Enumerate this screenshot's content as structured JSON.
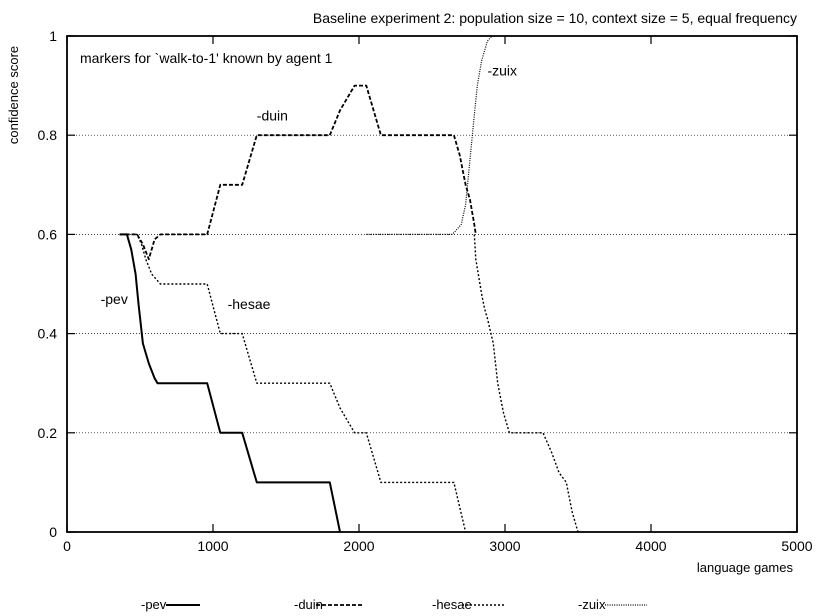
{
  "chart_data": {
    "type": "line",
    "title": "Baseline experiment 2: population size = 10, context size = 5, equal frequency",
    "xlabel": "language games",
    "ylabel": "confidence score",
    "xlim": [
      0,
      5000
    ],
    "ylim": [
      0,
      1
    ],
    "xticks": [
      "0",
      "1000",
      "2000",
      "3000",
      "4000",
      "5000"
    ],
    "yticks": [
      "0",
      "0.2",
      "0.4",
      "0.6",
      "0.8",
      "1"
    ],
    "grid": "horizontal dotted",
    "legend_position": "bottom",
    "annotation": "markers for `walk-to-1' known by agent 1",
    "series": [
      {
        "name": "-pev",
        "style": "solid",
        "label_at": [
          230,
          0.46
        ],
        "x": [
          360,
          410,
          440,
          470,
          490,
          520,
          560,
          600,
          620,
          960,
          1050,
          1200,
          1300,
          1800,
          1870
        ],
        "y": [
          0.6,
          0.6,
          0.57,
          0.52,
          0.46,
          0.38,
          0.34,
          0.31,
          0.3,
          0.3,
          0.2,
          0.2,
          0.1,
          0.1,
          0.0
        ]
      },
      {
        "name": "-duin",
        "style": "dashed",
        "label_at": [
          1300,
          0.83
        ],
        "x": [
          360,
          480,
          520,
          560,
          600,
          640,
          960,
          1050,
          1200,
          1300,
          1800,
          1870,
          1970,
          2050,
          2150,
          2650,
          2690,
          2730,
          2760,
          2790,
          2800
        ],
        "y": [
          0.6,
          0.6,
          0.58,
          0.55,
          0.59,
          0.6,
          0.6,
          0.7,
          0.7,
          0.8,
          0.8,
          0.85,
          0.9,
          0.9,
          0.8,
          0.8,
          0.76,
          0.7,
          0.67,
          0.62,
          0.6
        ]
      },
      {
        "name": "-hesae",
        "style": "dotted",
        "label_at": [
          1100,
          0.45
        ],
        "x": [
          360,
          480,
          510,
          540,
          580,
          640,
          960,
          1050,
          1200,
          1300,
          1800,
          1870,
          1970,
          2050,
          2150,
          2650,
          2690,
          2730,
          2790,
          2800,
          2840,
          2860,
          2880,
          2920,
          2950,
          2990,
          3030,
          3260,
          3320,
          3370,
          3420,
          3460,
          3500
        ],
        "y": [
          0.6,
          0.6,
          0.58,
          0.55,
          0.52,
          0.5,
          0.5,
          0.4,
          0.4,
          0.3,
          0.3,
          0.25,
          0.2,
          0.2,
          0.1,
          0.1,
          0.05,
          0.0,
          0.6,
          0.55,
          0.48,
          0.45,
          0.43,
          0.38,
          0.3,
          0.24,
          0.2,
          0.2,
          0.16,
          0.12,
          0.1,
          0.04,
          0.0
        ]
      },
      {
        "name": "-zuix",
        "style": "densedot",
        "label_at": [
          2880,
          0.92
        ],
        "x": [
          2050,
          2640,
          2700,
          2730,
          2750,
          2770,
          2790,
          2810,
          2840,
          2880,
          2910
        ],
        "y": [
          0.6,
          0.6,
          0.62,
          0.66,
          0.72,
          0.78,
          0.84,
          0.9,
          0.95,
          0.99,
          1.0
        ]
      }
    ]
  }
}
